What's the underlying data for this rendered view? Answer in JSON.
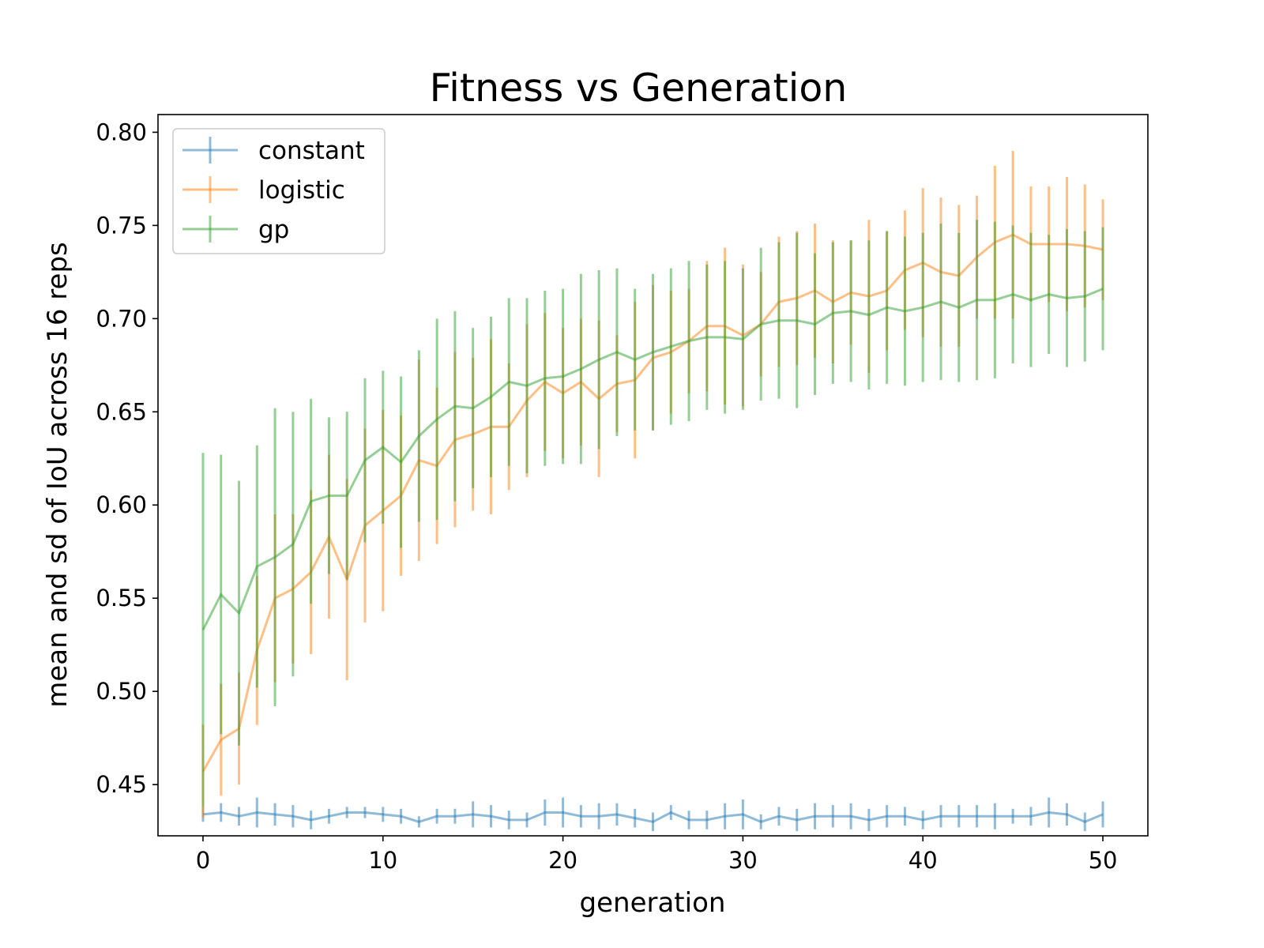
{
  "chart_data": {
    "type": "line",
    "title": "Fitness vs Generation",
    "xlabel": "generation",
    "ylabel": "mean and sd of IoU across 16 reps",
    "xlim": [
      -2.5,
      52.5
    ],
    "ylim": [
      0.4225,
      0.8095
    ],
    "xticks": [
      0,
      10,
      20,
      30,
      40,
      50
    ],
    "yticks": [
      0.45,
      0.5,
      0.55,
      0.6,
      0.65,
      0.7,
      0.75,
      0.8
    ],
    "ytick_labels": [
      "0.45",
      "0.50",
      "0.55",
      "0.60",
      "0.65",
      "0.70",
      "0.75",
      "0.80"
    ],
    "grid": false,
    "legend_position": "upper-left",
    "error_bars": "standard deviation",
    "series": [
      {
        "name": "constant",
        "color": "#1f77b4",
        "mean": [
          0.434,
          0.435,
          0.433,
          0.435,
          0.434,
          0.433,
          0.431,
          0.433,
          0.435,
          0.435,
          0.434,
          0.433,
          0.43,
          0.433,
          0.433,
          0.434,
          0.433,
          0.431,
          0.431,
          0.435,
          0.435,
          0.433,
          0.433,
          0.434,
          0.432,
          0.43,
          0.435,
          0.431,
          0.431,
          0.433,
          0.434,
          0.43,
          0.433,
          0.431,
          0.433,
          0.433,
          0.433,
          0.431,
          0.433,
          0.433,
          0.431,
          0.433,
          0.433,
          0.433,
          0.433,
          0.433,
          0.433,
          0.435,
          0.434,
          0.43,
          0.434
        ],
        "sd": [
          0.004,
          0.005,
          0.005,
          0.008,
          0.006,
          0.006,
          0.005,
          0.004,
          0.003,
          0.003,
          0.004,
          0.004,
          0.003,
          0.004,
          0.004,
          0.007,
          0.006,
          0.005,
          0.004,
          0.007,
          0.008,
          0.006,
          0.007,
          0.006,
          0.005,
          0.005,
          0.004,
          0.005,
          0.005,
          0.007,
          0.008,
          0.004,
          0.005,
          0.006,
          0.007,
          0.006,
          0.007,
          0.006,
          0.006,
          0.005,
          0.005,
          0.006,
          0.006,
          0.006,
          0.007,
          0.004,
          0.005,
          0.008,
          0.006,
          0.005,
          0.007
        ]
      },
      {
        "name": "logistic",
        "color": "#ff7f0e",
        "mean": [
          0.457,
          0.474,
          0.48,
          0.522,
          0.55,
          0.555,
          0.564,
          0.583,
          0.56,
          0.589,
          0.597,
          0.605,
          0.624,
          0.621,
          0.635,
          0.638,
          0.642,
          0.642,
          0.656,
          0.666,
          0.66,
          0.666,
          0.657,
          0.665,
          0.667,
          0.679,
          0.682,
          0.688,
          0.696,
          0.696,
          0.691,
          0.697,
          0.709,
          0.711,
          0.715,
          0.709,
          0.714,
          0.712,
          0.715,
          0.726,
          0.73,
          0.725,
          0.723,
          0.733,
          0.741,
          0.745,
          0.74,
          0.74,
          0.74,
          0.739,
          0.737
        ],
        "sd": [
          0.025,
          0.03,
          0.03,
          0.04,
          0.045,
          0.04,
          0.044,
          0.044,
          0.054,
          0.052,
          0.054,
          0.043,
          0.054,
          0.042,
          0.047,
          0.041,
          0.047,
          0.034,
          0.041,
          0.037,
          0.035,
          0.034,
          0.042,
          0.026,
          0.042,
          0.039,
          0.033,
          0.028,
          0.035,
          0.042,
          0.038,
          0.028,
          0.035,
          0.036,
          0.036,
          0.033,
          0.028,
          0.041,
          0.032,
          0.032,
          0.04,
          0.04,
          0.038,
          0.033,
          0.041,
          0.045,
          0.031,
          0.031,
          0.036,
          0.033,
          0.027
        ]
      },
      {
        "name": "gp",
        "color": "#2ca02c",
        "mean": [
          0.533,
          0.552,
          0.542,
          0.567,
          0.572,
          0.579,
          0.602,
          0.605,
          0.605,
          0.624,
          0.631,
          0.623,
          0.637,
          0.646,
          0.653,
          0.652,
          0.658,
          0.666,
          0.664,
          0.668,
          0.669,
          0.673,
          0.678,
          0.682,
          0.678,
          0.682,
          0.685,
          0.688,
          0.69,
          0.69,
          0.689,
          0.697,
          0.699,
          0.699,
          0.697,
          0.703,
          0.704,
          0.702,
          0.706,
          0.704,
          0.706,
          0.709,
          0.706,
          0.71,
          0.71,
          0.713,
          0.71,
          0.713,
          0.711,
          0.712,
          0.716
        ],
        "sd": [
          0.095,
          0.075,
          0.071,
          0.065,
          0.08,
          0.071,
          0.055,
          0.042,
          0.045,
          0.044,
          0.041,
          0.046,
          0.046,
          0.054,
          0.051,
          0.043,
          0.043,
          0.045,
          0.047,
          0.047,
          0.047,
          0.051,
          0.048,
          0.045,
          0.038,
          0.042,
          0.042,
          0.043,
          0.039,
          0.041,
          0.038,
          0.041,
          0.042,
          0.047,
          0.038,
          0.038,
          0.038,
          0.04,
          0.041,
          0.04,
          0.04,
          0.042,
          0.04,
          0.043,
          0.042,
          0.037,
          0.036,
          0.032,
          0.037,
          0.035,
          0.033
        ]
      }
    ]
  }
}
